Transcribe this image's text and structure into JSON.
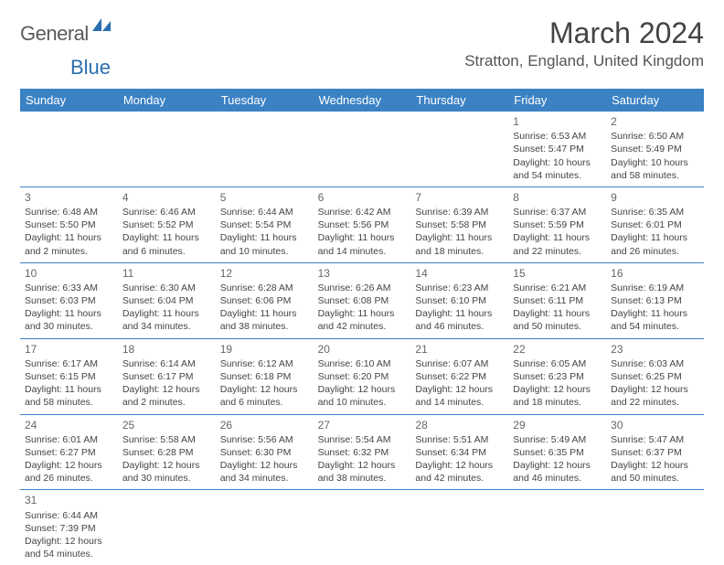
{
  "logo": {
    "textA": "General",
    "textB": "Blue"
  },
  "title": "March 2024",
  "location": "Stratton, England, United Kingdom",
  "colors": {
    "headerBg": "#3b82c4",
    "headerText": "#ffffff",
    "cellText": "#444444",
    "ruleColor": "#3b82c4"
  },
  "dayNames": [
    "Sunday",
    "Monday",
    "Tuesday",
    "Wednesday",
    "Thursday",
    "Friday",
    "Saturday"
  ],
  "weeks": [
    [
      null,
      null,
      null,
      null,
      null,
      {
        "n": "1",
        "sr": "Sunrise: 6:53 AM",
        "ss": "Sunset: 5:47 PM",
        "d1": "Daylight: 10 hours",
        "d2": "and 54 minutes."
      },
      {
        "n": "2",
        "sr": "Sunrise: 6:50 AM",
        "ss": "Sunset: 5:49 PM",
        "d1": "Daylight: 10 hours",
        "d2": "and 58 minutes."
      }
    ],
    [
      {
        "n": "3",
        "sr": "Sunrise: 6:48 AM",
        "ss": "Sunset: 5:50 PM",
        "d1": "Daylight: 11 hours",
        "d2": "and 2 minutes."
      },
      {
        "n": "4",
        "sr": "Sunrise: 6:46 AM",
        "ss": "Sunset: 5:52 PM",
        "d1": "Daylight: 11 hours",
        "d2": "and 6 minutes."
      },
      {
        "n": "5",
        "sr": "Sunrise: 6:44 AM",
        "ss": "Sunset: 5:54 PM",
        "d1": "Daylight: 11 hours",
        "d2": "and 10 minutes."
      },
      {
        "n": "6",
        "sr": "Sunrise: 6:42 AM",
        "ss": "Sunset: 5:56 PM",
        "d1": "Daylight: 11 hours",
        "d2": "and 14 minutes."
      },
      {
        "n": "7",
        "sr": "Sunrise: 6:39 AM",
        "ss": "Sunset: 5:58 PM",
        "d1": "Daylight: 11 hours",
        "d2": "and 18 minutes."
      },
      {
        "n": "8",
        "sr": "Sunrise: 6:37 AM",
        "ss": "Sunset: 5:59 PM",
        "d1": "Daylight: 11 hours",
        "d2": "and 22 minutes."
      },
      {
        "n": "9",
        "sr": "Sunrise: 6:35 AM",
        "ss": "Sunset: 6:01 PM",
        "d1": "Daylight: 11 hours",
        "d2": "and 26 minutes."
      }
    ],
    [
      {
        "n": "10",
        "sr": "Sunrise: 6:33 AM",
        "ss": "Sunset: 6:03 PM",
        "d1": "Daylight: 11 hours",
        "d2": "and 30 minutes."
      },
      {
        "n": "11",
        "sr": "Sunrise: 6:30 AM",
        "ss": "Sunset: 6:04 PM",
        "d1": "Daylight: 11 hours",
        "d2": "and 34 minutes."
      },
      {
        "n": "12",
        "sr": "Sunrise: 6:28 AM",
        "ss": "Sunset: 6:06 PM",
        "d1": "Daylight: 11 hours",
        "d2": "and 38 minutes."
      },
      {
        "n": "13",
        "sr": "Sunrise: 6:26 AM",
        "ss": "Sunset: 6:08 PM",
        "d1": "Daylight: 11 hours",
        "d2": "and 42 minutes."
      },
      {
        "n": "14",
        "sr": "Sunrise: 6:23 AM",
        "ss": "Sunset: 6:10 PM",
        "d1": "Daylight: 11 hours",
        "d2": "and 46 minutes."
      },
      {
        "n": "15",
        "sr": "Sunrise: 6:21 AM",
        "ss": "Sunset: 6:11 PM",
        "d1": "Daylight: 11 hours",
        "d2": "and 50 minutes."
      },
      {
        "n": "16",
        "sr": "Sunrise: 6:19 AM",
        "ss": "Sunset: 6:13 PM",
        "d1": "Daylight: 11 hours",
        "d2": "and 54 minutes."
      }
    ],
    [
      {
        "n": "17",
        "sr": "Sunrise: 6:17 AM",
        "ss": "Sunset: 6:15 PM",
        "d1": "Daylight: 11 hours",
        "d2": "and 58 minutes."
      },
      {
        "n": "18",
        "sr": "Sunrise: 6:14 AM",
        "ss": "Sunset: 6:17 PM",
        "d1": "Daylight: 12 hours",
        "d2": "and 2 minutes."
      },
      {
        "n": "19",
        "sr": "Sunrise: 6:12 AM",
        "ss": "Sunset: 6:18 PM",
        "d1": "Daylight: 12 hours",
        "d2": "and 6 minutes."
      },
      {
        "n": "20",
        "sr": "Sunrise: 6:10 AM",
        "ss": "Sunset: 6:20 PM",
        "d1": "Daylight: 12 hours",
        "d2": "and 10 minutes."
      },
      {
        "n": "21",
        "sr": "Sunrise: 6:07 AM",
        "ss": "Sunset: 6:22 PM",
        "d1": "Daylight: 12 hours",
        "d2": "and 14 minutes."
      },
      {
        "n": "22",
        "sr": "Sunrise: 6:05 AM",
        "ss": "Sunset: 6:23 PM",
        "d1": "Daylight: 12 hours",
        "d2": "and 18 minutes."
      },
      {
        "n": "23",
        "sr": "Sunrise: 6:03 AM",
        "ss": "Sunset: 6:25 PM",
        "d1": "Daylight: 12 hours",
        "d2": "and 22 minutes."
      }
    ],
    [
      {
        "n": "24",
        "sr": "Sunrise: 6:01 AM",
        "ss": "Sunset: 6:27 PM",
        "d1": "Daylight: 12 hours",
        "d2": "and 26 minutes."
      },
      {
        "n": "25",
        "sr": "Sunrise: 5:58 AM",
        "ss": "Sunset: 6:28 PM",
        "d1": "Daylight: 12 hours",
        "d2": "and 30 minutes."
      },
      {
        "n": "26",
        "sr": "Sunrise: 5:56 AM",
        "ss": "Sunset: 6:30 PM",
        "d1": "Daylight: 12 hours",
        "d2": "and 34 minutes."
      },
      {
        "n": "27",
        "sr": "Sunrise: 5:54 AM",
        "ss": "Sunset: 6:32 PM",
        "d1": "Daylight: 12 hours",
        "d2": "and 38 minutes."
      },
      {
        "n": "28",
        "sr": "Sunrise: 5:51 AM",
        "ss": "Sunset: 6:34 PM",
        "d1": "Daylight: 12 hours",
        "d2": "and 42 minutes."
      },
      {
        "n": "29",
        "sr": "Sunrise: 5:49 AM",
        "ss": "Sunset: 6:35 PM",
        "d1": "Daylight: 12 hours",
        "d2": "and 46 minutes."
      },
      {
        "n": "30",
        "sr": "Sunrise: 5:47 AM",
        "ss": "Sunset: 6:37 PM",
        "d1": "Daylight: 12 hours",
        "d2": "and 50 minutes."
      }
    ],
    [
      {
        "n": "31",
        "sr": "Sunrise: 6:44 AM",
        "ss": "Sunset: 7:39 PM",
        "d1": "Daylight: 12 hours",
        "d2": "and 54 minutes."
      },
      null,
      null,
      null,
      null,
      null,
      null
    ]
  ]
}
